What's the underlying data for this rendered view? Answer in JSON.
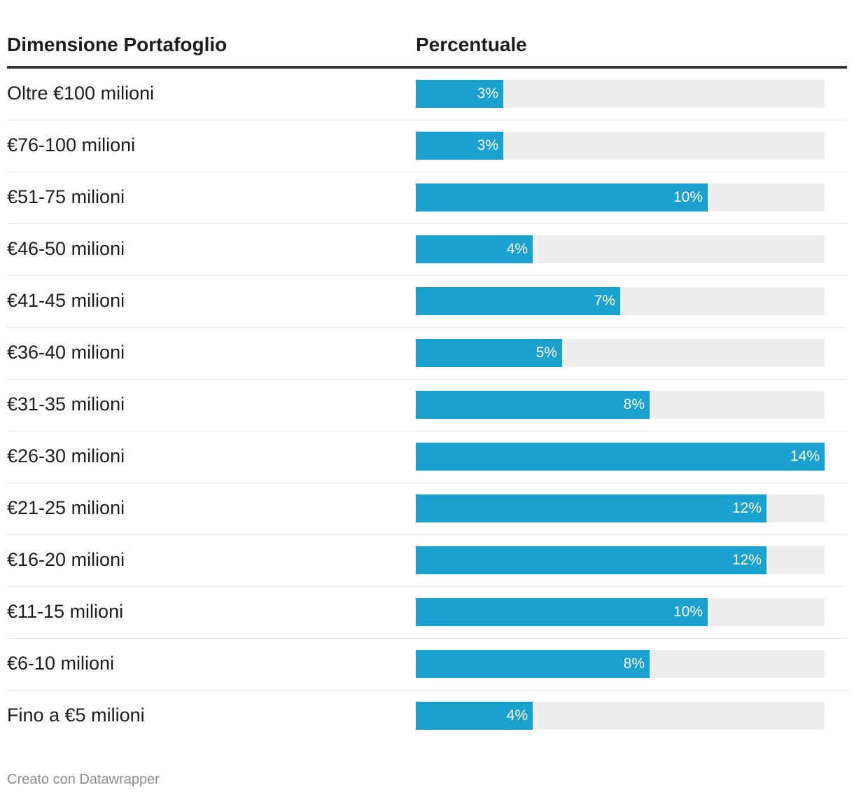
{
  "header": {
    "label_column": "Dimensione Portafoglio",
    "value_column": "Percentuale"
  },
  "colors": {
    "bar": "#1aa1cd",
    "track": "#eeeeee"
  },
  "chart_data": {
    "type": "bar",
    "orientation": "horizontal",
    "title": "",
    "xlabel": "Percentuale",
    "ylabel": "Dimensione Portafoglio",
    "xlim": [
      0,
      14
    ],
    "categories": [
      "Oltre €100 milioni",
      "€76-100 milioni",
      "€51-75 milioni",
      "€46-50 milioni",
      "€41-45 milioni",
      "€36-40 milioni",
      "€31-35 milioni",
      "€26-30 milioni",
      "€21-25 milioni",
      "€16-20 milioni",
      "€11-15 milioni",
      "€6-10 milioni",
      "Fino a €5 milioni"
    ],
    "values": [
      3,
      3,
      10,
      4,
      7,
      5,
      8,
      14,
      12,
      12,
      10,
      8,
      4
    ],
    "value_labels": [
      "3%",
      "3%",
      "10%",
      "4%",
      "7%",
      "5%",
      "8%",
      "14%",
      "12%",
      "12%",
      "10%",
      "8%",
      "4%"
    ]
  },
  "footer": {
    "credit": "Creato con Datawrapper"
  }
}
